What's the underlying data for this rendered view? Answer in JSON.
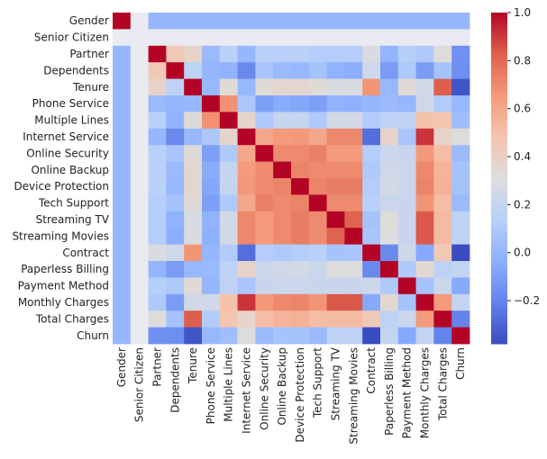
{
  "chart_data": {
    "type": "heatmap",
    "labels": [
      "Gender",
      "Senior Citizen",
      "Partner",
      "Dependents",
      "Tenure",
      "Phone Service",
      "Multiple Lines",
      "Internet Service",
      "Online Security",
      "Online Backup",
      "Device Protection",
      "Tech Support",
      "Streaming TV",
      "Streaming Movies",
      "Contract",
      "Paperless Billing",
      "Payment Method",
      "Monthly Charges",
      "Total Charges",
      "Churn"
    ],
    "colorbar": {
      "min": -0.38,
      "max": 1.0,
      "ticks": [
        "1.0",
        "0.8",
        "0.6",
        "0.4",
        "0.2",
        "0.0",
        "−0.2"
      ],
      "tick_values": [
        1.0,
        0.8,
        0.6,
        0.4,
        0.2,
        0.0,
        -0.2
      ],
      "colormap": "coolwarm"
    },
    "values": [
      [
        1,
        null,
        0,
        0,
        0,
        0,
        0,
        0,
        0,
        0,
        0,
        0,
        0,
        0,
        0,
        0,
        0,
        0,
        0,
        0
      ],
      [
        null,
        null,
        null,
        null,
        null,
        null,
        null,
        null,
        null,
        null,
        null,
        null,
        null,
        null,
        null,
        null,
        null,
        null,
        null,
        null
      ],
      [
        0,
        null,
        1,
        0.45,
        0.38,
        0.02,
        0.14,
        0,
        0.14,
        0.14,
        0.15,
        0.12,
        0.12,
        0.12,
        0.29,
        -0.01,
        0.13,
        0.1,
        0.32,
        -0.15
      ],
      [
        0,
        null,
        0.45,
        1,
        0.16,
        0,
        -0.02,
        -0.18,
        0.08,
        0.02,
        0.01,
        0.06,
        -0.02,
        -0.04,
        0.24,
        -0.11,
        0.1,
        -0.11,
        0.06,
        -0.16
      ],
      [
        0,
        null,
        0.38,
        0.16,
        1,
        0.01,
        0.33,
        0.01,
        0.33,
        0.36,
        0.36,
        0.33,
        0.28,
        0.29,
        0.67,
        0.01,
        0.34,
        0.25,
        0.83,
        -0.35
      ],
      [
        0,
        null,
        0.02,
        0,
        0.01,
        1,
        0.68,
        0.09,
        -0.1,
        -0.05,
        -0.07,
        -0.1,
        -0.02,
        -0.03,
        0,
        0.02,
        0,
        0.25,
        0.11,
        0.01
      ],
      [
        0,
        null,
        0.14,
        -0.02,
        0.33,
        0.68,
        1,
        0.37,
        0.1,
        0.2,
        0.2,
        0.1,
        0.26,
        0.26,
        0.11,
        0.16,
        0.17,
        0.49,
        0.47,
        0.04
      ],
      [
        0,
        null,
        0,
        -0.18,
        0.01,
        0.09,
        0.37,
        1,
        0.6,
        0.65,
        0.66,
        0.6,
        0.71,
        0.71,
        -0.27,
        0.38,
        0.08,
        0.91,
        0.38,
        0.32
      ],
      [
        0,
        null,
        0.14,
        0.08,
        0.33,
        -0.1,
        0.1,
        0.6,
        1,
        0.7,
        0.7,
        0.73,
        0.65,
        0.65,
        0.12,
        0.22,
        0.21,
        0.66,
        0.51,
        0.02
      ],
      [
        0,
        null,
        0.14,
        0.02,
        0.36,
        -0.05,
        0.2,
        0.65,
        0.7,
        1,
        0.72,
        0.7,
        0.7,
        0.7,
        0.1,
        0.25,
        0.22,
        0.71,
        0.55,
        0.07
      ],
      [
        0,
        null,
        0.15,
        0.01,
        0.36,
        -0.07,
        0.2,
        0.66,
        0.7,
        0.72,
        1,
        0.72,
        0.74,
        0.74,
        0.12,
        0.26,
        0.22,
        0.72,
        0.56,
        0.06
      ],
      [
        0,
        null,
        0.12,
        0.06,
        0.33,
        -0.1,
        0.1,
        0.6,
        0.73,
        0.7,
        0.72,
        1,
        0.7,
        0.7,
        0.14,
        0.22,
        0.21,
        0.67,
        0.51,
        0.02
      ],
      [
        0,
        null,
        0.12,
        -0.02,
        0.28,
        -0.02,
        0.26,
        0.71,
        0.65,
        0.7,
        0.74,
        0.7,
        1,
        0.82,
        0.07,
        0.32,
        0.21,
        0.84,
        0.52,
        0.16
      ],
      [
        0,
        null,
        0.12,
        -0.04,
        0.29,
        -0.03,
        0.26,
        0.71,
        0.65,
        0.7,
        0.74,
        0.7,
        0.82,
        1,
        0.08,
        0.31,
        0.21,
        0.84,
        0.52,
        0.16
      ],
      [
        0,
        null,
        0.29,
        0.24,
        0.67,
        0,
        0.11,
        -0.27,
        0.12,
        0.1,
        0.12,
        0.14,
        0.07,
        0.08,
        1,
        -0.18,
        0.23,
        -0.06,
        0.45,
        -0.4
      ],
      [
        0,
        null,
        -0.01,
        -0.11,
        0.01,
        0.02,
        0.16,
        0.38,
        0.22,
        0.25,
        0.26,
        0.22,
        0.32,
        0.31,
        -0.18,
        1,
        0.1,
        0.35,
        0.16,
        0.19
      ],
      [
        0,
        null,
        0.13,
        0.1,
        0.34,
        0,
        0.17,
        0.08,
        0.21,
        0.22,
        0.22,
        0.21,
        0.21,
        0.21,
        0.23,
        0.1,
        1,
        0.07,
        0.22,
        -0.06
      ],
      [
        0,
        null,
        0.1,
        -0.11,
        0.25,
        0.25,
        0.49,
        0.91,
        0.66,
        0.71,
        0.72,
        0.67,
        0.84,
        0.84,
        -0.06,
        0.35,
        0.07,
        1,
        0.65,
        0.19
      ],
      [
        0,
        null,
        0.32,
        0.06,
        0.83,
        0.11,
        0.47,
        0.38,
        0.51,
        0.55,
        0.56,
        0.51,
        0.52,
        0.52,
        0.45,
        0.16,
        0.22,
        0.65,
        1,
        -0.2
      ],
      [
        0,
        null,
        -0.15,
        -0.16,
        -0.35,
        0.01,
        0.04,
        0.32,
        0.02,
        0.07,
        0.06,
        0.02,
        0.16,
        0.16,
        -0.4,
        0.19,
        -0.06,
        0.19,
        -0.2,
        1
      ]
    ]
  }
}
